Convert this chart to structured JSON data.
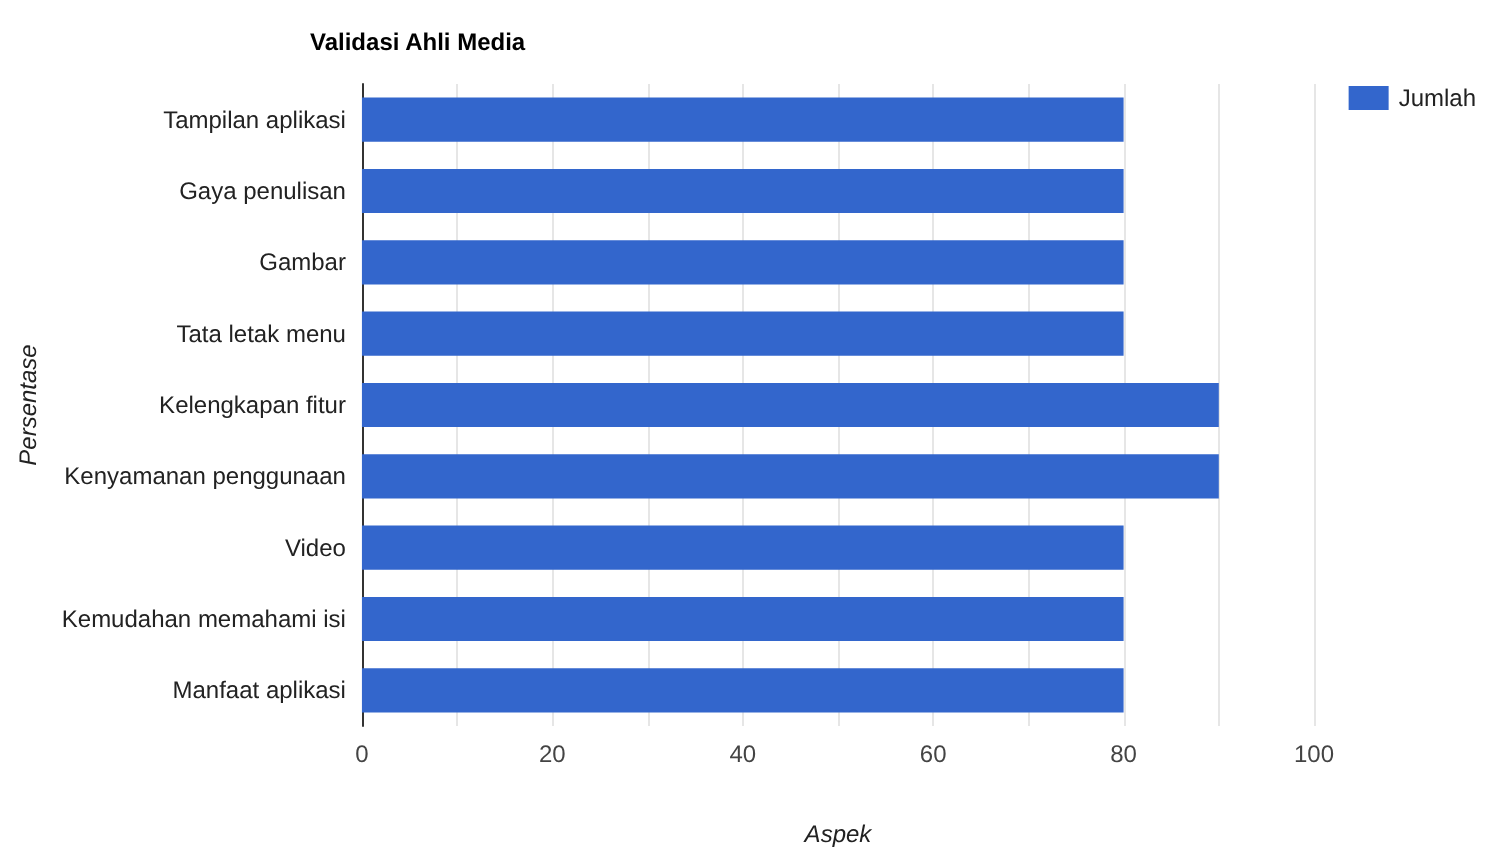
{
  "chart_data": {
    "type": "bar",
    "orientation": "horizontal",
    "title": "Validasi Ahli Media",
    "xlabel": "Aspek",
    "ylabel": "Persentase",
    "categories": [
      "Tampilan aplikasi",
      "Gaya penulisan",
      "Gambar",
      "Tata letak menu",
      "Kelengkapan fitur",
      "Kenyamanan penggunaan",
      "Video",
      "Kemudahan memahami isi",
      "Manfaat aplikasi"
    ],
    "series": [
      {
        "name": "Jumlah",
        "color": "#3366cc",
        "values": [
          80,
          80,
          80,
          80,
          90,
          90,
          80,
          80,
          80
        ]
      }
    ],
    "xlim": [
      0,
      100
    ],
    "xticks": [
      0,
      {
        "value": 10,
        "label": null
      },
      20,
      {
        "value": 30,
        "label": null
      },
      40,
      {
        "value": 50,
        "label": null
      },
      60,
      {
        "value": 70,
        "label": null
      },
      80,
      {
        "value": 90,
        "label": null
      },
      100
    ],
    "grid": "x",
    "legend": "top right"
  }
}
